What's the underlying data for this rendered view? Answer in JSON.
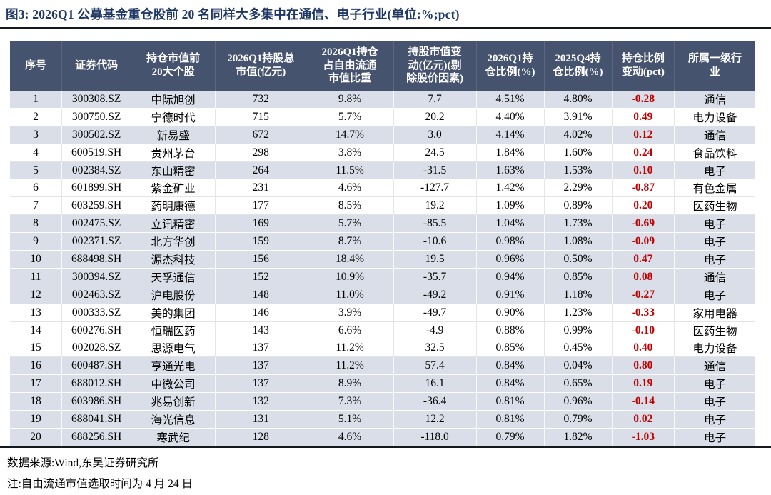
{
  "title": "图3:  2026Q1 公募基金重仓股前 20 名同样大多集中在通信、电子行业(单位:%;pct)",
  "colors": {
    "title_navy": "#1F3864",
    "header_bg": "#46536E",
    "row_shaded_bg": "#D9DEE8",
    "change_red": "#C00000"
  },
  "table": {
    "columns": [
      "序号",
      "证券代码",
      "持仓市值前\n20大个股",
      "2026Q1持股总\n市值(亿元)",
      "2026Q1持仓\n占自由流通\n市值比重",
      "持股市值变\n动(亿元)(剔\n除股价因素)",
      "2026Q1持\n仓比例(%)",
      "2025Q4持\n仓比例(%)",
      "持仓比例\n变动(pct)",
      "所属一级行\n业"
    ],
    "rows": [
      {
        "seq": "1",
        "code": "300308.SZ",
        "name": "中际旭创",
        "mktcap": "732",
        "float_ratio": "9.8%",
        "mv_change": "7.7",
        "q1_ratio": "4.51%",
        "q4_ratio": "4.80%",
        "ratio_change": "-0.28",
        "industry": "通信",
        "shaded": true
      },
      {
        "seq": "2",
        "code": "300750.SZ",
        "name": "宁德时代",
        "mktcap": "715",
        "float_ratio": "5.7%",
        "mv_change": "20.2",
        "q1_ratio": "4.40%",
        "q4_ratio": "3.91%",
        "ratio_change": "0.49",
        "industry": "电力设备",
        "shaded": false
      },
      {
        "seq": "3",
        "code": "300502.SZ",
        "name": "新易盛",
        "mktcap": "672",
        "float_ratio": "14.7%",
        "mv_change": "3.0",
        "q1_ratio": "4.14%",
        "q4_ratio": "4.02%",
        "ratio_change": "0.12",
        "industry": "通信",
        "shaded": true
      },
      {
        "seq": "4",
        "code": "600519.SH",
        "name": "贵州茅台",
        "mktcap": "298",
        "float_ratio": "3.8%",
        "mv_change": "24.5",
        "q1_ratio": "1.84%",
        "q4_ratio": "1.60%",
        "ratio_change": "0.24",
        "industry": "食品饮料",
        "shaded": false
      },
      {
        "seq": "5",
        "code": "002384.SZ",
        "name": "东山精密",
        "mktcap": "264",
        "float_ratio": "11.5%",
        "mv_change": "-31.5",
        "q1_ratio": "1.63%",
        "q4_ratio": "1.53%",
        "ratio_change": "0.10",
        "industry": "电子",
        "shaded": true
      },
      {
        "seq": "6",
        "code": "601899.SH",
        "name": "紫金矿业",
        "mktcap": "231",
        "float_ratio": "4.6%",
        "mv_change": "-127.7",
        "q1_ratio": "1.42%",
        "q4_ratio": "2.29%",
        "ratio_change": "-0.87",
        "industry": "有色金属",
        "shaded": false
      },
      {
        "seq": "7",
        "code": "603259.SH",
        "name": "药明康德",
        "mktcap": "177",
        "float_ratio": "8.5%",
        "mv_change": "19.2",
        "q1_ratio": "1.09%",
        "q4_ratio": "0.89%",
        "ratio_change": "0.20",
        "industry": "医药生物",
        "shaded": false
      },
      {
        "seq": "8",
        "code": "002475.SZ",
        "name": "立讯精密",
        "mktcap": "169",
        "float_ratio": "5.7%",
        "mv_change": "-85.5",
        "q1_ratio": "1.04%",
        "q4_ratio": "1.73%",
        "ratio_change": "-0.69",
        "industry": "电子",
        "shaded": true
      },
      {
        "seq": "9",
        "code": "002371.SZ",
        "name": "北方华创",
        "mktcap": "159",
        "float_ratio": "8.7%",
        "mv_change": "-10.6",
        "q1_ratio": "0.98%",
        "q4_ratio": "1.08%",
        "ratio_change": "-0.09",
        "industry": "电子",
        "shaded": true
      },
      {
        "seq": "10",
        "code": "688498.SH",
        "name": "源杰科技",
        "mktcap": "156",
        "float_ratio": "18.4%",
        "mv_change": "19.5",
        "q1_ratio": "0.96%",
        "q4_ratio": "0.50%",
        "ratio_change": "0.47",
        "industry": "电子",
        "shaded": true
      },
      {
        "seq": "11",
        "code": "300394.SZ",
        "name": "天孚通信",
        "mktcap": "152",
        "float_ratio": "10.9%",
        "mv_change": "-35.7",
        "q1_ratio": "0.94%",
        "q4_ratio": "0.85%",
        "ratio_change": "0.08",
        "industry": "通信",
        "shaded": true
      },
      {
        "seq": "12",
        "code": "002463.SZ",
        "name": "沪电股份",
        "mktcap": "148",
        "float_ratio": "11.0%",
        "mv_change": "-49.2",
        "q1_ratio": "0.91%",
        "q4_ratio": "1.18%",
        "ratio_change": "-0.27",
        "industry": "电子",
        "shaded": true
      },
      {
        "seq": "13",
        "code": "000333.SZ",
        "name": "美的集团",
        "mktcap": "146",
        "float_ratio": "3.9%",
        "mv_change": "-49.7",
        "q1_ratio": "0.90%",
        "q4_ratio": "1.23%",
        "ratio_change": "-0.33",
        "industry": "家用电器",
        "shaded": false
      },
      {
        "seq": "14",
        "code": "600276.SH",
        "name": "恒瑞医药",
        "mktcap": "143",
        "float_ratio": "6.6%",
        "mv_change": "-4.9",
        "q1_ratio": "0.88%",
        "q4_ratio": "0.99%",
        "ratio_change": "-0.10",
        "industry": "医药生物",
        "shaded": false
      },
      {
        "seq": "15",
        "code": "002028.SZ",
        "name": "思源电气",
        "mktcap": "137",
        "float_ratio": "11.2%",
        "mv_change": "32.5",
        "q1_ratio": "0.85%",
        "q4_ratio": "0.45%",
        "ratio_change": "0.40",
        "industry": "电力设备",
        "shaded": false
      },
      {
        "seq": "16",
        "code": "600487.SH",
        "name": "亨通光电",
        "mktcap": "137",
        "float_ratio": "11.2%",
        "mv_change": "57.4",
        "q1_ratio": "0.84%",
        "q4_ratio": "0.04%",
        "ratio_change": "0.80",
        "industry": "通信",
        "shaded": true
      },
      {
        "seq": "17",
        "code": "688012.SH",
        "name": "中微公司",
        "mktcap": "137",
        "float_ratio": "8.9%",
        "mv_change": "16.1",
        "q1_ratio": "0.84%",
        "q4_ratio": "0.65%",
        "ratio_change": "0.19",
        "industry": "电子",
        "shaded": true
      },
      {
        "seq": "18",
        "code": "603986.SH",
        "name": "兆易创新",
        "mktcap": "132",
        "float_ratio": "7.3%",
        "mv_change": "-36.4",
        "q1_ratio": "0.81%",
        "q4_ratio": "0.96%",
        "ratio_change": "-0.14",
        "industry": "电子",
        "shaded": true
      },
      {
        "seq": "19",
        "code": "688041.SH",
        "name": "海光信息",
        "mktcap": "131",
        "float_ratio": "5.1%",
        "mv_change": "12.2",
        "q1_ratio": "0.81%",
        "q4_ratio": "0.79%",
        "ratio_change": "0.02",
        "industry": "电子",
        "shaded": true
      },
      {
        "seq": "20",
        "code": "688256.SH",
        "name": "寒武纪",
        "mktcap": "128",
        "float_ratio": "4.6%",
        "mv_change": "-118.0",
        "q1_ratio": "0.79%",
        "q4_ratio": "1.82%",
        "ratio_change": "-1.03",
        "industry": "电子",
        "shaded": true
      }
    ]
  },
  "footer": {
    "source": "数据来源:Wind,东吴证券研究所",
    "note": "注:自由流通市值选取时间为 4 月 24 日"
  }
}
